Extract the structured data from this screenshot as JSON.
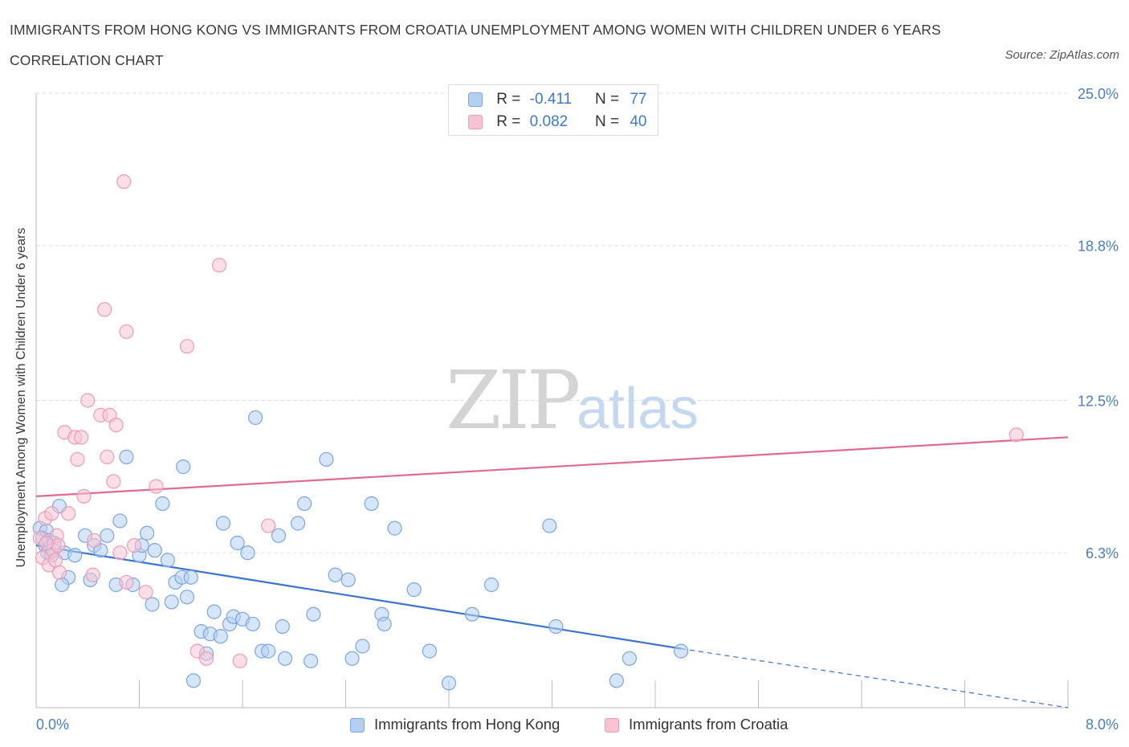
{
  "title": "IMMIGRANTS FROM HONG KONG VS IMMIGRANTS FROM CROATIA UNEMPLOYMENT AMONG WOMEN WITH CHILDREN UNDER 6 YEARS CORRELATION CHART",
  "source": "Source: ZipAtlas.com",
  "watermark": {
    "zip": "ZIP",
    "atlas": "atlas"
  },
  "legend": {
    "r_label": "R =",
    "n_label": "N =",
    "rows": [
      {
        "r": "-0.411",
        "n": "77"
      },
      {
        "r": "0.082",
        "n": "40"
      }
    ]
  },
  "colors": {
    "hong_kong_fill": "#b4cff2",
    "hong_kong_stroke": "#7aa6e2",
    "hong_kong_line": "#3a74cc",
    "croatia_fill": "#f8c4d4",
    "croatia_stroke": "#ef9ab5",
    "croatia_line": "#e06a92",
    "tick_text": "#4a7cc9",
    "grid": "#dcdcdc"
  },
  "chart_data": {
    "type": "scatter",
    "title": "IMMIGRANTS FROM HONG KONG VS IMMIGRANTS FROM CROATIA UNEMPLOYMENT AMONG WOMEN WITH CHILDREN UNDER 6 YEARS CORRELATION CHART",
    "xlabel": "",
    "ylabel": "Unemployment Among Women with Children Under 6 years",
    "xlim": [
      0,
      8.0
    ],
    "ylim": [
      0,
      25.0
    ],
    "x_ticks": [
      0.0,
      8.0
    ],
    "x_tick_labels": [
      "0.0%",
      "8.0%"
    ],
    "y_ticks": [
      6.3,
      12.5,
      18.8,
      25.0
    ],
    "y_tick_labels": [
      "6.3%",
      "12.5%",
      "18.8%",
      "25.0%"
    ],
    "grid": true,
    "legend_position": "bottom",
    "series": [
      {
        "name": "Immigrants from Hong Kong",
        "R": -0.411,
        "N": 77,
        "trend": {
          "x0": 0.0,
          "y0": 6.6,
          "x1": 5.0,
          "y1": 2.4,
          "dashed_to_x": 8.0,
          "dashed_to_y": 0.0
        },
        "points": [
          [
            0.03,
            7.3
          ],
          [
            0.05,
            6.9
          ],
          [
            0.07,
            6.6
          ],
          [
            0.08,
            7.2
          ],
          [
            0.09,
            6.3
          ],
          [
            0.1,
            6.8
          ],
          [
            0.12,
            6.2
          ],
          [
            0.14,
            6.7
          ],
          [
            0.18,
            8.2
          ],
          [
            0.22,
            6.3
          ],
          [
            0.25,
            5.3
          ],
          [
            0.3,
            6.2
          ],
          [
            0.38,
            7.0
          ],
          [
            0.42,
            5.2
          ],
          [
            0.45,
            6.6
          ],
          [
            0.5,
            6.4
          ],
          [
            0.55,
            7.0
          ],
          [
            0.62,
            5.0
          ],
          [
            0.65,
            7.6
          ],
          [
            0.7,
            10.2
          ],
          [
            0.75,
            5.0
          ],
          [
            0.8,
            6.2
          ],
          [
            0.82,
            6.6
          ],
          [
            0.86,
            7.1
          ],
          [
            0.9,
            4.2
          ],
          [
            0.92,
            6.4
          ],
          [
            0.98,
            8.3
          ],
          [
            1.02,
            6.0
          ],
          [
            1.05,
            4.3
          ],
          [
            1.08,
            5.1
          ],
          [
            1.13,
            5.3
          ],
          [
            1.14,
            9.8
          ],
          [
            1.17,
            4.5
          ],
          [
            1.2,
            5.3
          ],
          [
            1.22,
            1.1
          ],
          [
            1.28,
            3.1
          ],
          [
            1.32,
            2.2
          ],
          [
            1.35,
            3.0
          ],
          [
            1.38,
            3.9
          ],
          [
            1.43,
            2.9
          ],
          [
            1.45,
            7.5
          ],
          [
            1.5,
            3.4
          ],
          [
            1.53,
            3.7
          ],
          [
            1.56,
            6.7
          ],
          [
            1.6,
            3.6
          ],
          [
            1.64,
            6.3
          ],
          [
            1.68,
            3.4
          ],
          [
            1.7,
            11.8
          ],
          [
            1.75,
            2.3
          ],
          [
            1.8,
            2.3
          ],
          [
            1.88,
            7.0
          ],
          [
            1.91,
            3.3
          ],
          [
            1.93,
            2.0
          ],
          [
            2.03,
            7.5
          ],
          [
            2.08,
            8.3
          ],
          [
            2.13,
            1.9
          ],
          [
            2.15,
            3.8
          ],
          [
            2.25,
            10.1
          ],
          [
            2.32,
            5.4
          ],
          [
            2.42,
            5.2
          ],
          [
            2.45,
            2.0
          ],
          [
            2.53,
            2.5
          ],
          [
            2.6,
            8.3
          ],
          [
            2.68,
            3.8
          ],
          [
            2.7,
            3.4
          ],
          [
            2.78,
            7.3
          ],
          [
            2.93,
            4.8
          ],
          [
            3.05,
            2.3
          ],
          [
            3.2,
            1.0
          ],
          [
            3.38,
            3.8
          ],
          [
            3.53,
            5.0
          ],
          [
            3.98,
            7.4
          ],
          [
            4.03,
            3.3
          ],
          [
            4.5,
            1.1
          ],
          [
            4.6,
            2.0
          ],
          [
            5.0,
            2.3
          ],
          [
            0.2,
            5.0
          ]
        ]
      },
      {
        "name": "Immigrants from Croatia",
        "R": 0.082,
        "N": 40,
        "trend": {
          "x0": 0.0,
          "y0": 8.6,
          "x1": 8.0,
          "y1": 11.0
        },
        "points": [
          [
            0.03,
            6.9
          ],
          [
            0.05,
            6.1
          ],
          [
            0.07,
            7.7
          ],
          [
            0.1,
            5.8
          ],
          [
            0.12,
            7.9
          ],
          [
            0.13,
            6.4
          ],
          [
            0.16,
            7.0
          ],
          [
            0.17,
            6.6
          ],
          [
            0.18,
            5.5
          ],
          [
            0.22,
            11.2
          ],
          [
            0.25,
            7.9
          ],
          [
            0.3,
            11.0
          ],
          [
            0.32,
            10.1
          ],
          [
            0.35,
            11.0
          ],
          [
            0.37,
            8.6
          ],
          [
            0.4,
            12.5
          ],
          [
            0.44,
            5.4
          ],
          [
            0.5,
            11.9
          ],
          [
            0.53,
            16.2
          ],
          [
            0.55,
            10.2
          ],
          [
            0.57,
            11.9
          ],
          [
            0.6,
            9.2
          ],
          [
            0.62,
            11.5
          ],
          [
            0.65,
            6.3
          ],
          [
            0.68,
            21.4
          ],
          [
            0.7,
            5.1
          ],
          [
            0.7,
            15.3
          ],
          [
            0.76,
            6.6
          ],
          [
            0.85,
            4.7
          ],
          [
            0.93,
            9.0
          ],
          [
            1.17,
            14.7
          ],
          [
            1.25,
            2.3
          ],
          [
            1.32,
            2.0
          ],
          [
            1.42,
            18.0
          ],
          [
            1.58,
            1.9
          ],
          [
            1.8,
            7.4
          ],
          [
            7.6,
            11.1
          ],
          [
            0.08,
            6.7
          ],
          [
            0.15,
            6.0
          ],
          [
            0.45,
            6.8
          ]
        ]
      }
    ]
  }
}
